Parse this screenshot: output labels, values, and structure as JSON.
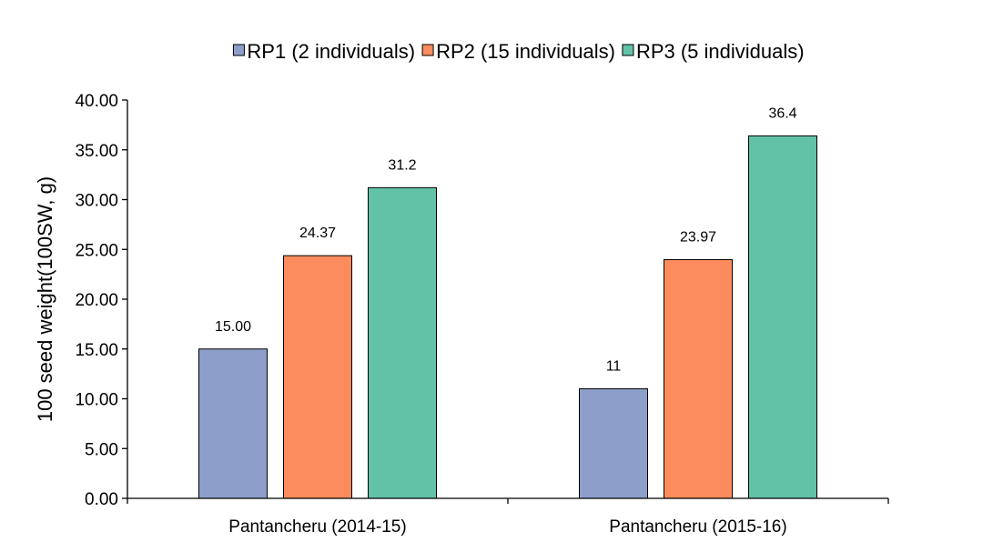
{
  "chart_data": {
    "type": "bar",
    "title": "",
    "xlabel": "",
    "ylabel": "100 seed weight(100SW, g)",
    "ylim": [
      0,
      40
    ],
    "ytick_step": 5,
    "ytick_labels": [
      "0.00",
      "5.00",
      "10.00",
      "15.00",
      "20.00",
      "25.00",
      "30.00",
      "35.00",
      "40.00"
    ],
    "grid": false,
    "legend_position": "top-center",
    "categories": [
      "Pantancheru (2014-15)",
      "Pantancheru (2015-16)"
    ],
    "series": [
      {
        "name": "RP1 (2 individuals)",
        "color": "#8e9ecb",
        "values": [
          15.0,
          11
        ],
        "labels": [
          "15.00",
          "11"
        ]
      },
      {
        "name": "RP2 (15 individuals)",
        "color": "#fc8c5e",
        "values": [
          24.37,
          23.97
        ],
        "labels": [
          "24.37",
          "23.97"
        ]
      },
      {
        "name": "RP3 (5 individuals)",
        "color": "#62c2a7",
        "values": [
          31.2,
          36.4
        ],
        "labels": [
          "31.2",
          "36.4"
        ]
      }
    ]
  }
}
